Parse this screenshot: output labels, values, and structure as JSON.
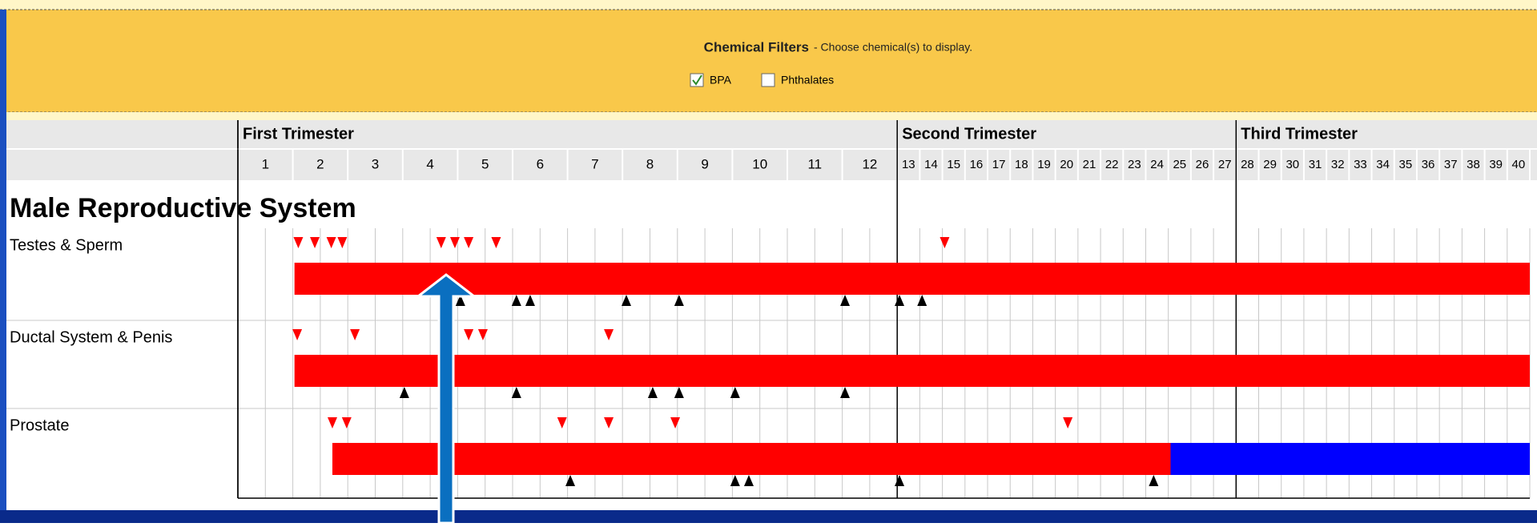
{
  "filters": {
    "title": "Chemical Filters",
    "subtitle": "- Choose chemical(s) to display.",
    "options": [
      {
        "label": "BPA",
        "checked": true
      },
      {
        "label": "Phthalates",
        "checked": false
      }
    ]
  },
  "timeline": {
    "trimesters": [
      {
        "label": "First Trimester",
        "start": 0
      },
      {
        "label": "Second Trimester",
        "start": 12
      },
      {
        "label": "Third Trimester",
        "start": 27
      }
    ],
    "weeks": [
      1,
      2,
      3,
      4,
      5,
      6,
      7,
      8,
      9,
      10,
      11,
      12,
      13,
      14,
      15,
      16,
      17,
      18,
      19,
      20,
      21,
      22,
      23,
      24,
      25,
      26,
      27,
      28,
      29,
      30,
      31,
      32,
      33,
      34,
      35,
      36,
      37,
      38,
      39,
      40
    ],
    "section": "Male Reproductive System",
    "rows": [
      {
        "label": "Testes & Sperm",
        "segments": [
          {
            "start": 1.03,
            "end": 40,
            "color": "#ff0000"
          }
        ],
        "red_markers": [
          1.1,
          1.4,
          1.7,
          1.9,
          3.7,
          3.95,
          4.2,
          4.7,
          14.1
        ],
        "black_markers": [
          4.05,
          5.07,
          5.32,
          7.07,
          8.03,
          11.05,
          12.1,
          13.1
        ]
      },
      {
        "label": "Ductal System & Penis",
        "segments": [
          {
            "start": 1.03,
            "end": 40,
            "color": "#ff0000"
          }
        ],
        "red_markers": [
          1.08,
          2.13,
          4.2,
          4.46,
          6.75
        ],
        "black_markers": [
          3.03,
          5.07,
          7.55,
          8.03,
          9.05,
          11.05
        ]
      },
      {
        "label": "Prostate",
        "segments": [
          {
            "start": 1.72,
            "end": 24.1,
            "color": "#ff0000"
          },
          {
            "start": 24.1,
            "end": 40,
            "color": "#0000ff"
          }
        ],
        "red_markers": [
          1.72,
          1.98,
          5.9,
          6.75,
          7.96,
          19.55
        ],
        "black_markers": [
          6.05,
          9.05,
          9.3,
          12.1,
          23.35
        ]
      }
    ]
  }
}
